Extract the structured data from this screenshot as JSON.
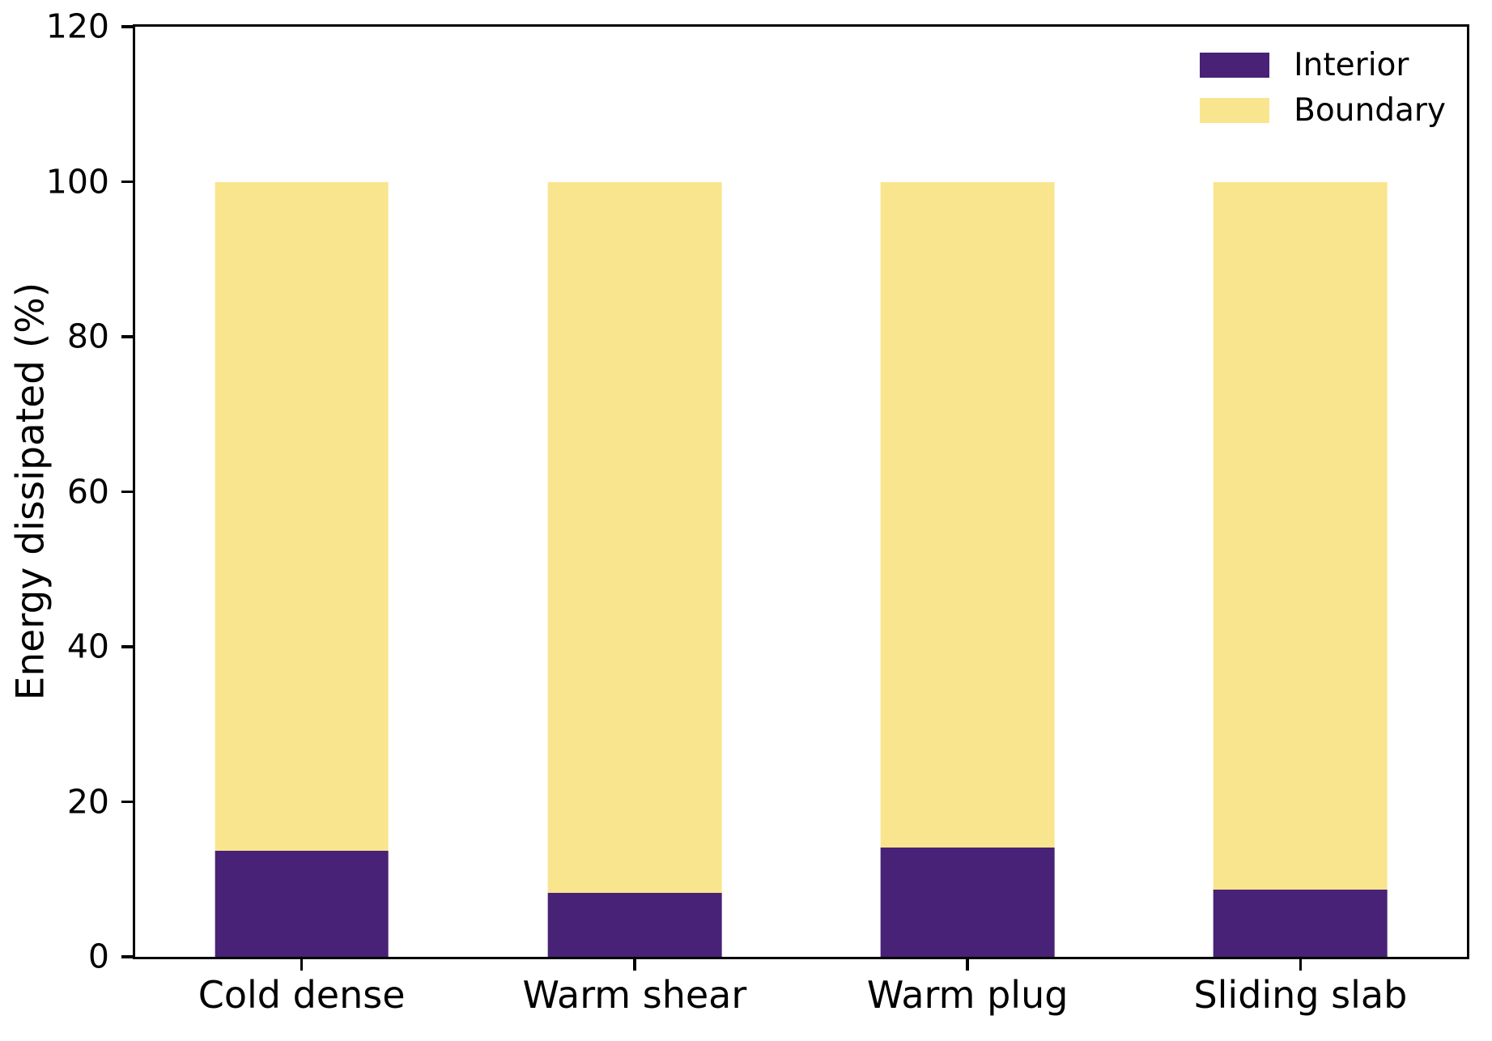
{
  "chart_data": {
    "type": "bar",
    "stacked": true,
    "title": "",
    "xlabel": "",
    "ylabel": "Energy dissipated (%)",
    "categories": [
      "Cold dense",
      "Warm shear",
      "Warm plug",
      "Sliding slab"
    ],
    "series": [
      {
        "name": "Interior",
        "color": "#472276",
        "values": [
          13.7,
          8.3,
          14.1,
          8.7
        ]
      },
      {
        "name": "Boundary",
        "color": "#FAE58F",
        "values": [
          86.3,
          91.7,
          85.9,
          91.3
        ]
      }
    ],
    "ylim": [
      0,
      120
    ],
    "yticks": [
      0,
      20,
      40,
      60,
      80,
      100,
      120
    ],
    "grid": false,
    "frame": "full-box",
    "legend_position": "upper-right",
    "legend_frame": false,
    "colors": {
      "axis": "#000000",
      "background": "#ffffff",
      "text": "#000000"
    }
  }
}
